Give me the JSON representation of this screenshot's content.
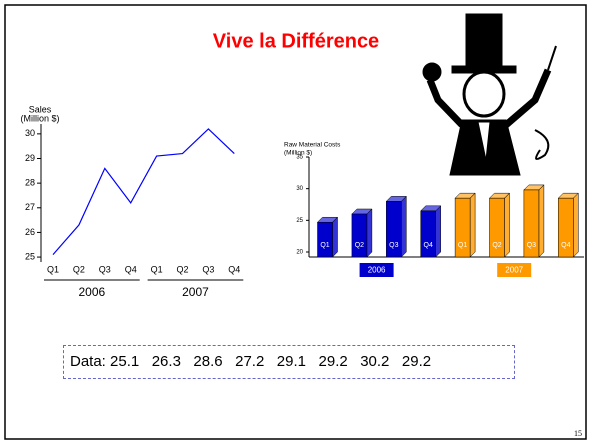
{
  "title": "Vive la Différence",
  "chart_data": [
    {
      "type": "line",
      "ylabel": [
        "Sales",
        "(Million $)"
      ],
      "categories": [
        "Q1",
        "Q2",
        "Q3",
        "Q4",
        "Q1",
        "Q2",
        "Q3",
        "Q4"
      ],
      "groups": [
        "2006",
        "2007"
      ],
      "values": [
        25.1,
        26.3,
        28.6,
        27.2,
        29.1,
        29.2,
        30.2,
        29.2
      ],
      "color": "#0000ff",
      "ylim": [
        24.8,
        30.4
      ],
      "yticks": [
        25,
        26,
        27,
        28,
        29,
        30
      ]
    },
    {
      "type": "bar3d",
      "ylabel": [
        "Raw Material Costs",
        "(Million $)"
      ],
      "categories": [
        "Q1",
        "Q2",
        "Q3",
        "Q4",
        "Q1",
        "Q2",
        "Q3",
        "Q4"
      ],
      "groups": [
        "2006",
        "2007"
      ],
      "group_colors": [
        "#0000cc",
        "#ff9900"
      ],
      "values": [
        24.7,
        26,
        28,
        26.5,
        28.5,
        28.5,
        29.8,
        28.5
      ],
      "ylim": [
        20,
        35
      ],
      "yticks": [
        20,
        25,
        30,
        35
      ]
    }
  ],
  "data_text": "Data: 25.1   26.3   28.6   27.2   29.1   29.2   30.2   29.2",
  "page_number": "15"
}
